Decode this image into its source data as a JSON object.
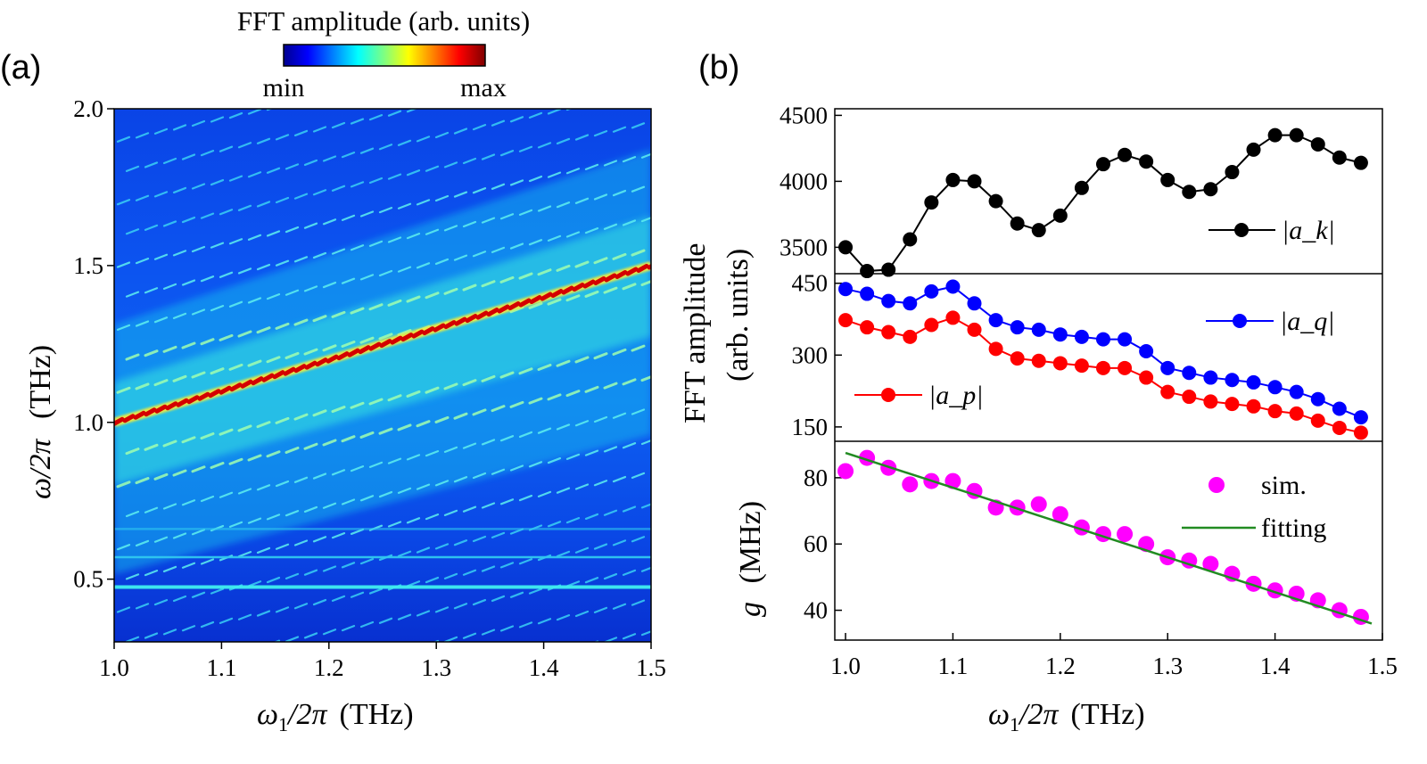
{
  "panel_labels": {
    "a": "(a)",
    "b": "(b)"
  },
  "colorbar": {
    "title": "FFT amplitude (arb. units)",
    "min_label": "min",
    "max_label": "max"
  },
  "colors": {
    "ak": "#000000",
    "aq": "#0000ff",
    "ap": "#ff0000",
    "sim": "#ff00ff",
    "fitting": "#228b22"
  },
  "chart_data": [
    {
      "type": "heatmap",
      "panel": "(a)",
      "title": "FFT amplitude (arb. units)",
      "xlabel": "ω1/2π (THz)",
      "ylabel": "ω/2π (THz)",
      "xlim": [
        1.0,
        1.5
      ],
      "ylim": [
        0.3,
        2.0
      ],
      "x_ticks": [
        "1.0",
        "1.1",
        "1.2",
        "1.3",
        "1.4",
        "1.5"
      ],
      "y_ticks": [
        "0.5",
        "1.0",
        "1.5",
        "2.0"
      ],
      "colorscale": "jet (min → max)",
      "ridge": {
        "description": "main resonance ω = ω1",
        "x": [
          1.0,
          1.5
        ],
        "y": [
          1.0,
          1.5
        ]
      },
      "horizontal_lines_THz": [
        0.475,
        0.57,
        0.66
      ]
    },
    {
      "type": "line",
      "panel": "(b) top",
      "ylabel": "FFT amplitude (arb. units)",
      "ylim": [
        3300,
        4550
      ],
      "y_ticks": [
        "3500",
        "4000",
        "4500"
      ],
      "x": [
        1.0,
        1.02,
        1.04,
        1.06,
        1.08,
        1.1,
        1.12,
        1.14,
        1.16,
        1.18,
        1.2,
        1.22,
        1.24,
        1.26,
        1.28,
        1.3,
        1.32,
        1.34,
        1.36,
        1.38,
        1.4,
        1.42,
        1.44,
        1.46,
        1.48
      ],
      "series": [
        {
          "name": "|a_k|",
          "values": [
            3500,
            3320,
            3330,
            3560,
            3840,
            4010,
            4000,
            3850,
            3680,
            3630,
            3740,
            3950,
            4130,
            4200,
            4150,
            4010,
            3920,
            3940,
            4070,
            4240,
            4350,
            4350,
            4280,
            4180,
            4140
          ]
        }
      ]
    },
    {
      "type": "line",
      "panel": "(b) middle",
      "ylim": [
        120,
        470
      ],
      "y_ticks": [
        "150",
        "300",
        "450"
      ],
      "x": [
        1.0,
        1.02,
        1.04,
        1.06,
        1.08,
        1.1,
        1.12,
        1.14,
        1.16,
        1.18,
        1.2,
        1.22,
        1.24,
        1.26,
        1.28,
        1.3,
        1.32,
        1.34,
        1.36,
        1.38,
        1.4,
        1.42,
        1.44,
        1.46,
        1.48
      ],
      "series": [
        {
          "name": "|a_q|",
          "values": [
            438,
            428,
            413,
            408,
            433,
            443,
            408,
            373,
            358,
            353,
            343,
            338,
            333,
            333,
            308,
            273,
            263,
            253,
            248,
            243,
            233,
            223,
            208,
            188,
            170
          ]
        },
        {
          "name": "|a_p|",
          "values": [
            373,
            358,
            348,
            338,
            363,
            378,
            353,
            313,
            293,
            288,
            283,
            278,
            273,
            273,
            253,
            223,
            213,
            203,
            198,
            193,
            183,
            178,
            163,
            148,
            138
          ]
        }
      ]
    },
    {
      "type": "scatter",
      "panel": "(b) bottom",
      "xlabel": "ω1/2π (THz)",
      "ylabel": "g (MHz)",
      "xlim": [
        0.99,
        1.5
      ],
      "ylim": [
        31,
        91
      ],
      "x_ticks": [
        "1.0",
        "1.1",
        "1.2",
        "1.3",
        "1.4",
        "1.5"
      ],
      "y_ticks": [
        "40",
        "60",
        "80"
      ],
      "x": [
        1.0,
        1.02,
        1.04,
        1.06,
        1.08,
        1.1,
        1.12,
        1.14,
        1.16,
        1.18,
        1.2,
        1.22,
        1.24,
        1.26,
        1.28,
        1.3,
        1.32,
        1.34,
        1.36,
        1.38,
        1.4,
        1.42,
        1.44,
        1.46,
        1.48
      ],
      "series": [
        {
          "name": "sim.",
          "values": [
            82,
            86,
            83,
            78,
            79,
            79,
            76,
            71,
            71,
            72,
            69,
            65,
            63,
            63,
            60,
            56,
            55,
            54,
            51,
            48,
            46,
            45,
            43,
            40,
            38
          ]
        },
        {
          "name": "fitting",
          "type": "line",
          "x": [
            1.0,
            1.49
          ],
          "values": [
            87.5,
            36
          ]
        }
      ]
    }
  ],
  "legend": {
    "ak": "|a_k|",
    "aq": "|a_q|",
    "ap": "|a_p|",
    "sim": "sim.",
    "fitting": "fitting"
  },
  "axis_text": {
    "a_ylabel_main": "ω/2π",
    "a_ylabel_unit": "(THz)",
    "a_xlabel_main": "ω",
    "a_xlabel_sub": "1",
    "a_xlabel_rest": "/2π",
    "a_xlabel_unit": "(THz)",
    "b_ylabel_line1": "FFT amplitude",
    "b_ylabel_line2": "(arb. units)",
    "b_glabel_g": "g",
    "b_glabel_unit": "(MHz)",
    "b_xlabel_main": "ω",
    "b_xlabel_sub": "1",
    "b_xlabel_rest": "/2π",
    "b_xlabel_unit": "(THz)"
  }
}
